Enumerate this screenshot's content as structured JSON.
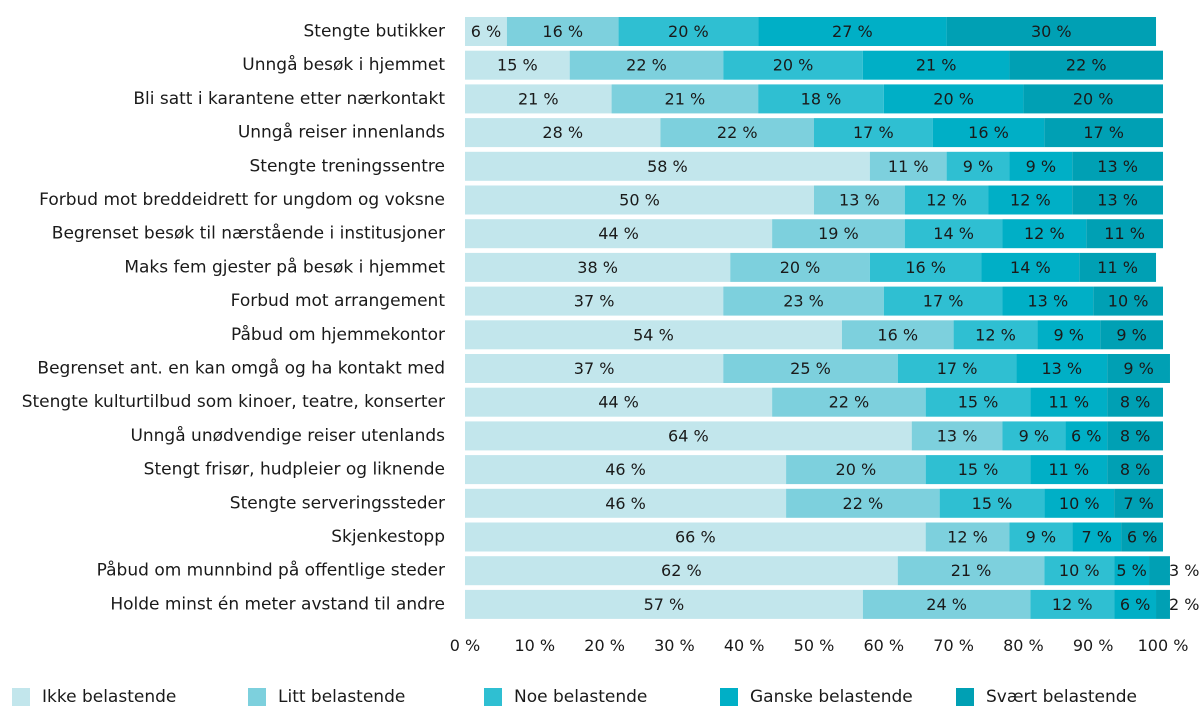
{
  "chart_data": {
    "type": "bar",
    "orientation": "horizontal",
    "stacked": true,
    "categories": [
      "Stengte butikker",
      "Unngå besøk i hjemmet",
      "Bli satt i karantene etter nærkontakt",
      "Unngå reiser innenlands",
      "Stengte treningssentre",
      "Forbud mot breddeidrett for ungdom og voksne",
      "Begrenset besøk til nærstående i institusjoner",
      "Maks fem gjester på besøk i hjemmet",
      "Forbud mot arrangement",
      "Påbud om hjemmekontor",
      "Begrenset ant. en kan omgå og ha kontakt med",
      "Stengte kulturtilbud som kinoer, teatre, konserter",
      "Unngå unødvendige reiser utenlands",
      "Stengt frisør, hudpleier og liknende",
      "Stengte serveringssteder",
      "Skjenkestopp",
      "Påbud om munnbind på offentlige steder",
      "Holde minst én meter avstand til andre"
    ],
    "series": [
      {
        "name": "Ikke belastende",
        "color": "#c2e6ec",
        "values": [
          6,
          15,
          21,
          28,
          58,
          50,
          44,
          38,
          37,
          54,
          37,
          44,
          64,
          46,
          46,
          66,
          62,
          57
        ]
      },
      {
        "name": "Litt belastende",
        "color": "#7dd0dd",
        "values": [
          16,
          22,
          21,
          22,
          11,
          13,
          19,
          20,
          23,
          16,
          25,
          22,
          13,
          20,
          22,
          12,
          21,
          24
        ]
      },
      {
        "name": "Noe belastende",
        "color": "#2fbfd2",
        "values": [
          20,
          20,
          18,
          17,
          9,
          12,
          14,
          16,
          17,
          12,
          17,
          15,
          9,
          15,
          15,
          9,
          10,
          12
        ]
      },
      {
        "name": "Ganske belastende",
        "color": "#00afc6",
        "values": [
          27,
          21,
          20,
          16,
          9,
          12,
          12,
          14,
          13,
          9,
          13,
          11,
          6,
          11,
          10,
          7,
          5,
          6
        ]
      },
      {
        "name": "Svært belastende",
        "color": "#00a0b4",
        "values": [
          30,
          22,
          20,
          17,
          13,
          13,
          11,
          11,
          10,
          9,
          9,
          8,
          8,
          8,
          7,
          6,
          3,
          2
        ]
      }
    ],
    "outside_label_min_value": 4,
    "value_suffix": " %",
    "xlim": [
      0,
      100
    ],
    "xticks": [
      "0 %",
      "10 %",
      "20 %",
      "30 %",
      "40 %",
      "50 %",
      "60 %",
      "70 %",
      "80 %",
      "90 %",
      "100 %"
    ],
    "legend_position": "bottom",
    "title": "",
    "xlabel": "",
    "ylabel": ""
  }
}
